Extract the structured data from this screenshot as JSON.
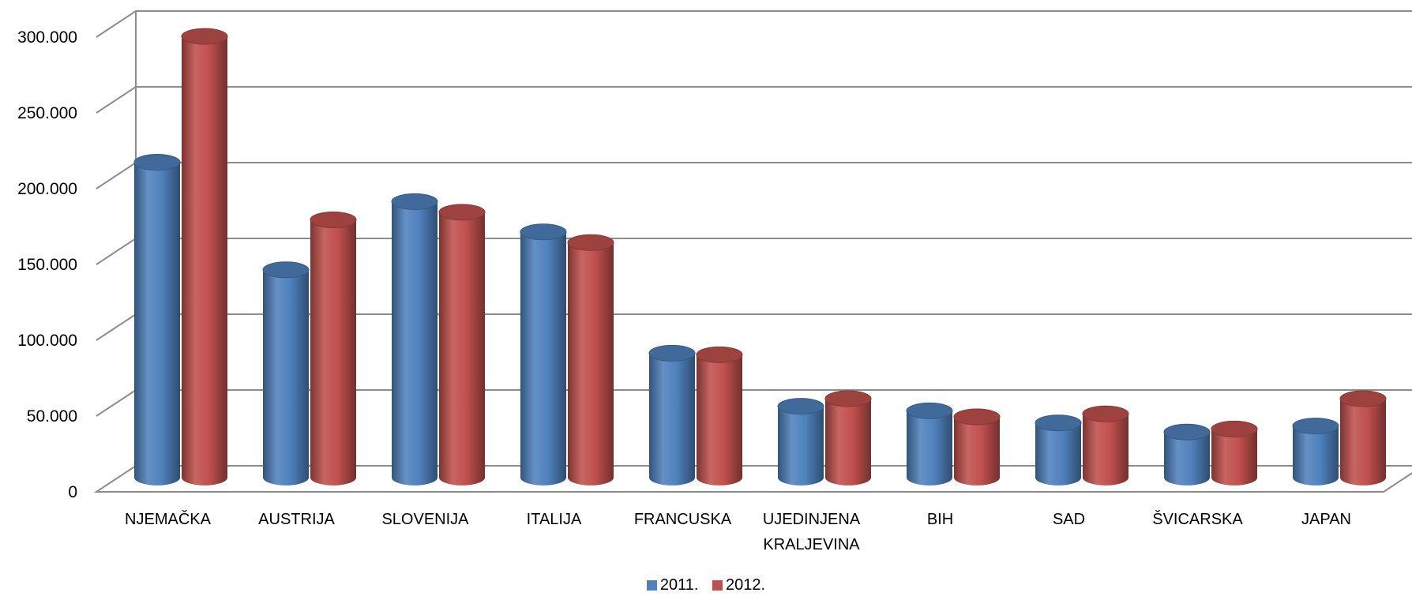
{
  "chart_data": {
    "type": "bar",
    "style": "3d-cylinder",
    "categories": [
      "NJEMAČKA",
      "AUSTRIJA",
      "SLOVENIJA",
      "ITALIJA",
      "FRANCUSKA",
      "UJEDINJENA KRALJEVINA",
      "BIH",
      "SAD",
      "ŠVICARSKA",
      "JAPAN"
    ],
    "category_lines": [
      [
        "NJEMAČKA"
      ],
      [
        "AUSTRIJA"
      ],
      [
        "SLOVENIJA"
      ],
      [
        "ITALIJA"
      ],
      [
        "FRANCUSKA"
      ],
      [
        "UJEDINJENA",
        "KRALJEVINA"
      ],
      [
        "BIH"
      ],
      [
        "SAD"
      ],
      [
        "ŠVICARSKA"
      ],
      [
        "JAPAN"
      ]
    ],
    "series": [
      {
        "name": "2011.",
        "color": "#4f81bd",
        "values": [
          208000,
          137000,
          182000,
          162000,
          82000,
          47000,
          44000,
          36000,
          30000,
          34000
        ]
      },
      {
        "name": "2012.",
        "color": "#c0504d",
        "values": [
          291000,
          170000,
          175000,
          155000,
          81000,
          52000,
          40000,
          42000,
          32000,
          52000
        ]
      }
    ],
    "yticks": [
      "0",
      "50.000",
      "100.000",
      "150.000",
      "200.000",
      "250.000",
      "300.000"
    ],
    "ylim": [
      0,
      300000
    ],
    "grid": true,
    "legend_position": "bottom-center",
    "xlabel": "",
    "ylabel": ""
  },
  "legend": {
    "items": [
      {
        "label": "2011.",
        "color": "#4f81bd"
      },
      {
        "label": "2012.",
        "color": "#c0504d"
      }
    ]
  }
}
